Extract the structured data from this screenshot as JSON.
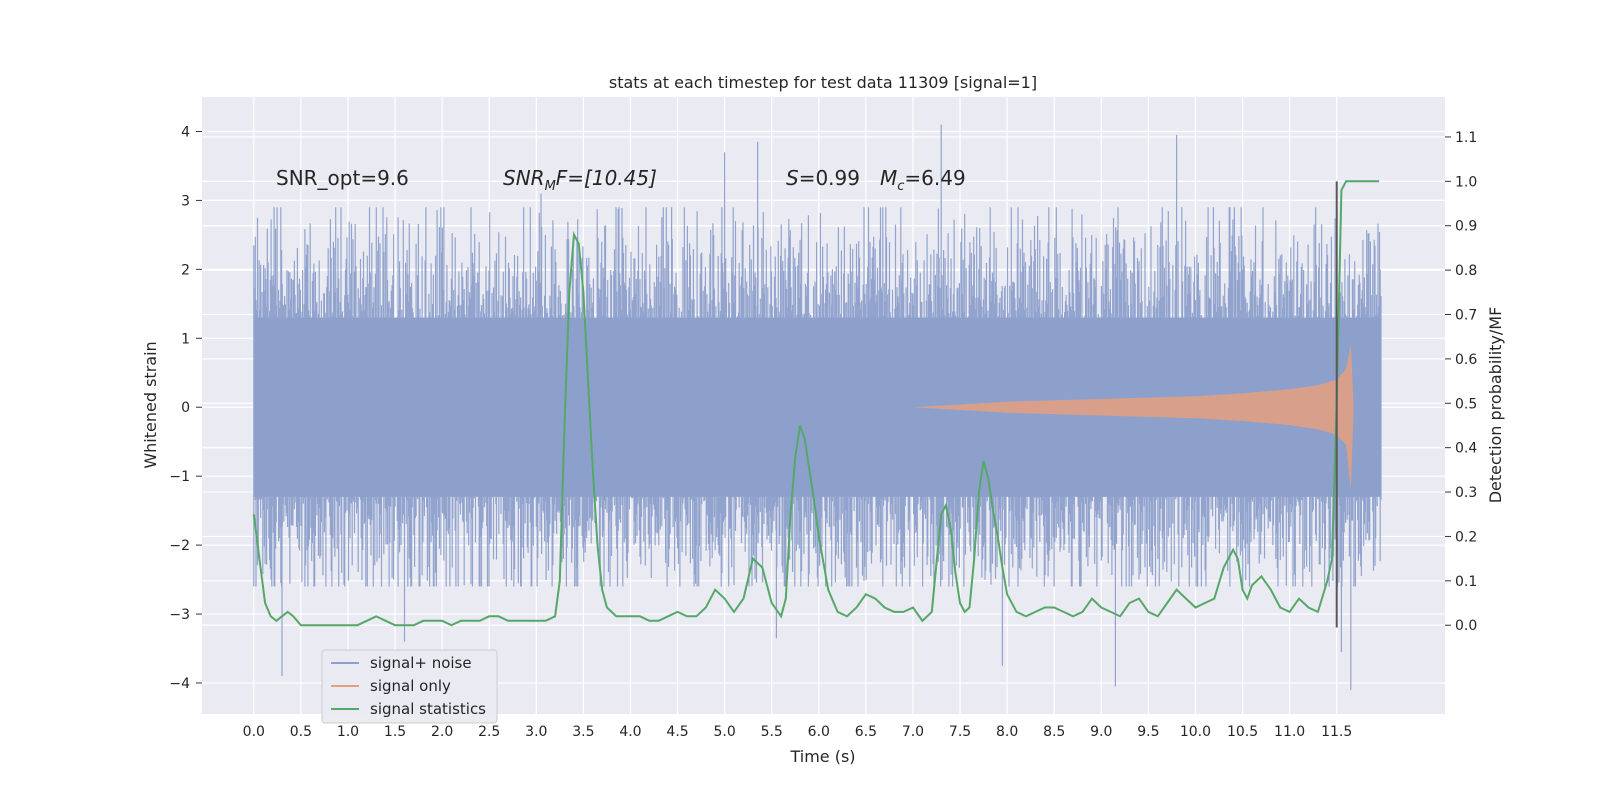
{
  "chart_data": {
    "type": "line",
    "title": "stats at each timestep for test data 11309 [signal=1]",
    "xlabel": "Time (s)",
    "ylabel_left": "Whitened strain",
    "ylabel_right": "Detection probability/MF",
    "xlim": [
      -0.55,
      12.65
    ],
    "ylim_left": [
      -4.45,
      4.5
    ],
    "ylim_right": [
      -0.2,
      1.19
    ],
    "x_ticks": [
      "0.0",
      "0.5",
      "1.0",
      "1.5",
      "2.0",
      "2.5",
      "3.0",
      "3.5",
      "4.0",
      "4.5",
      "5.0",
      "5.5",
      "6.0",
      "6.5",
      "7.0",
      "7.5",
      "8.0",
      "8.5",
      "9.0",
      "9.5",
      "10.0",
      "10.5",
      "11.0",
      "11.5"
    ],
    "y_ticks_left": [
      "−4",
      "−3",
      "−2",
      "−1",
      "0",
      "1",
      "2",
      "3",
      "4"
    ],
    "y_ticks_right": [
      "0.0",
      "0.1",
      "0.2",
      "0.3",
      "0.4",
      "0.5",
      "0.6",
      "0.7",
      "0.8",
      "0.9",
      "1.0",
      "1.1"
    ],
    "grid": true,
    "legend_position": "lower-left",
    "annotations": {
      "snr_opt": "SNR_opt=9.6",
      "snr_mf_base": "SNR",
      "snr_mf_sub": "M",
      "snr_mf_rest": "F=[10.45]",
      "s_label": "S",
      "s_value": "=0.99",
      "mc_base": "M",
      "mc_sub": "c",
      "mc_value": "=6.49"
    },
    "series": [
      {
        "name": "signal+ noise",
        "color": "#8da0cb",
        "axis": "left",
        "t_range": [
          0.0,
          11.97
        ],
        "body_envelope": [
          -1.3,
          1.3
        ],
        "typical_spike_range": [
          -2.6,
          2.9
        ],
        "peak_spikes": [
          {
            "t": 0.3,
            "y": -3.9
          },
          {
            "t": 1.6,
            "y": -3.4
          },
          {
            "t": 3.05,
            "y": 3.1
          },
          {
            "t": 5.0,
            "y": 3.7
          },
          {
            "t": 5.35,
            "y": 3.85
          },
          {
            "t": 5.55,
            "y": -3.35
          },
          {
            "t": 7.3,
            "y": 4.1
          },
          {
            "t": 7.95,
            "y": -3.75
          },
          {
            "t": 9.15,
            "y": -4.05
          },
          {
            "t": 9.8,
            "y": 3.95
          },
          {
            "t": 11.55,
            "y": -3.55
          },
          {
            "t": 11.65,
            "y": -4.1
          }
        ]
      },
      {
        "name": "signal only",
        "color": "#e5a07e",
        "axis": "left",
        "t": [
          7.0,
          7.5,
          8.0,
          8.5,
          9.0,
          9.5,
          10.0,
          10.5,
          11.0,
          11.3,
          11.5,
          11.6,
          11.65,
          11.68
        ],
        "amplitude": [
          0.0,
          0.04,
          0.08,
          0.1,
          0.12,
          0.14,
          0.16,
          0.2,
          0.26,
          0.32,
          0.4,
          0.55,
          0.9,
          0.0
        ],
        "min_value_at_end": -1.2
      },
      {
        "name": "signal statistics",
        "color": "#55a868",
        "axis": "right",
        "t": [
          0.0,
          0.06,
          0.12,
          0.18,
          0.24,
          0.3,
          0.36,
          0.42,
          0.5,
          0.6,
          0.7,
          0.8,
          0.9,
          1.0,
          1.1,
          1.2,
          1.3,
          1.4,
          1.5,
          1.6,
          1.7,
          1.8,
          1.9,
          2.0,
          2.1,
          2.2,
          2.3,
          2.4,
          2.5,
          2.6,
          2.7,
          2.8,
          2.9,
          3.0,
          3.1,
          3.2,
          3.25,
          3.3,
          3.35,
          3.4,
          3.45,
          3.5,
          3.55,
          3.6,
          3.65,
          3.7,
          3.75,
          3.8,
          3.85,
          3.9,
          3.95,
          4.0,
          4.1,
          4.2,
          4.3,
          4.4,
          4.5,
          4.6,
          4.7,
          4.8,
          4.9,
          5.0,
          5.1,
          5.2,
          5.3,
          5.4,
          5.5,
          5.6,
          5.65,
          5.7,
          5.75,
          5.8,
          5.85,
          5.9,
          5.95,
          6.0,
          6.1,
          6.2,
          6.3,
          6.4,
          6.5,
          6.6,
          6.7,
          6.8,
          6.9,
          7.0,
          7.1,
          7.2,
          7.3,
          7.35,
          7.4,
          7.45,
          7.5,
          7.55,
          7.6,
          7.65,
          7.7,
          7.75,
          7.8,
          7.85,
          7.9,
          7.95,
          8.0,
          8.1,
          8.2,
          8.3,
          8.4,
          8.5,
          8.6,
          8.7,
          8.8,
          8.9,
          9.0,
          9.1,
          9.2,
          9.3,
          9.4,
          9.5,
          9.6,
          9.7,
          9.8,
          9.9,
          10.0,
          10.1,
          10.2,
          10.3,
          10.4,
          10.45,
          10.5,
          10.55,
          10.6,
          10.7,
          10.8,
          10.9,
          11.0,
          11.1,
          11.2,
          11.3,
          11.4,
          11.45,
          11.5,
          11.55,
          11.6,
          11.7,
          11.8,
          11.9,
          11.95
        ],
        "values": [
          0.25,
          0.15,
          0.05,
          0.02,
          0.01,
          0.02,
          0.03,
          0.02,
          0.0,
          0.0,
          0.0,
          0.0,
          0.0,
          0.0,
          0.0,
          0.01,
          0.02,
          0.01,
          0.0,
          0.0,
          0.0,
          0.01,
          0.01,
          0.01,
          0.0,
          0.01,
          0.01,
          0.01,
          0.02,
          0.02,
          0.01,
          0.01,
          0.01,
          0.01,
          0.01,
          0.02,
          0.1,
          0.45,
          0.75,
          0.88,
          0.86,
          0.75,
          0.55,
          0.35,
          0.18,
          0.08,
          0.04,
          0.03,
          0.02,
          0.02,
          0.02,
          0.02,
          0.02,
          0.01,
          0.01,
          0.02,
          0.03,
          0.02,
          0.02,
          0.04,
          0.08,
          0.06,
          0.03,
          0.06,
          0.15,
          0.13,
          0.05,
          0.02,
          0.06,
          0.25,
          0.38,
          0.45,
          0.42,
          0.35,
          0.28,
          0.2,
          0.08,
          0.03,
          0.02,
          0.04,
          0.07,
          0.06,
          0.04,
          0.03,
          0.03,
          0.04,
          0.01,
          0.03,
          0.25,
          0.27,
          0.22,
          0.12,
          0.05,
          0.03,
          0.04,
          0.15,
          0.3,
          0.37,
          0.33,
          0.26,
          0.2,
          0.13,
          0.07,
          0.03,
          0.02,
          0.03,
          0.04,
          0.04,
          0.03,
          0.02,
          0.03,
          0.06,
          0.04,
          0.03,
          0.02,
          0.05,
          0.06,
          0.03,
          0.02,
          0.05,
          0.08,
          0.06,
          0.04,
          0.05,
          0.06,
          0.13,
          0.17,
          0.15,
          0.08,
          0.06,
          0.09,
          0.11,
          0.08,
          0.04,
          0.03,
          0.06,
          0.04,
          0.03,
          0.1,
          0.15,
          0.5,
          0.98,
          1.0,
          1.0,
          1.0,
          1.0,
          1.0
        ]
      }
    ],
    "vertical_marker": {
      "t": 11.5,
      "color": "#595959"
    }
  }
}
